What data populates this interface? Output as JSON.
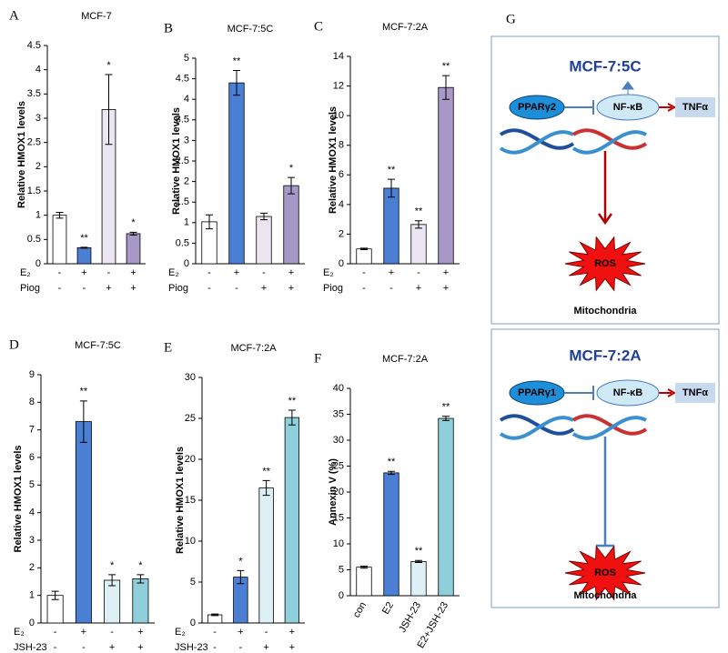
{
  "chart_data": [
    {
      "type": "bar",
      "label": "A",
      "title": "MCF-7",
      "y_label": "Relative HMOX1 levels",
      "values": [
        1.0,
        0.33,
        3.18,
        0.62
      ],
      "errors": [
        0.06,
        0.01,
        0.72,
        0.03
      ],
      "colors": [
        "#ffffff",
        "#4a7fd4",
        "#ece6f2",
        "#a898c8"
      ],
      "significance": [
        null,
        "**",
        "*",
        "*"
      ],
      "conditions": [
        {
          "name": "E₂",
          "values": [
            "-",
            "+",
            "-",
            "+"
          ]
        },
        {
          "name": "Piog",
          "values": [
            "-",
            "-",
            "+",
            "+"
          ]
        }
      ],
      "ylim": [
        0,
        4.5
      ],
      "yticks": [
        0,
        0.5,
        1,
        1.5,
        2,
        2.5,
        3,
        3.5,
        4,
        4.5
      ]
    },
    {
      "type": "bar",
      "label": "B",
      "title": "MCF-7:5C",
      "y_label": "Relative HMOX1 levels",
      "values": [
        1.02,
        4.4,
        1.15,
        1.9
      ],
      "errors": [
        0.17,
        0.3,
        0.08,
        0.2
      ],
      "colors": [
        "#ffffff",
        "#4a7fd4",
        "#ece6f2",
        "#a898c8"
      ],
      "significance": [
        null,
        "**",
        null,
        "*"
      ],
      "conditions": [
        {
          "name": "E₂",
          "values": [
            "-",
            "+",
            "-",
            "+"
          ]
        },
        {
          "name": "Piog",
          "values": [
            "-",
            "-",
            "+",
            "+"
          ]
        }
      ],
      "ylim": [
        0,
        5
      ],
      "yticks": [
        0,
        0.5,
        1,
        1.5,
        2,
        2.5,
        3,
        3.5,
        4,
        4.5,
        5
      ]
    },
    {
      "type": "bar",
      "label": "C",
      "title": "MCF-7:2A",
      "y_label": "Relative HMOX1 levels",
      "values": [
        1.0,
        5.1,
        2.65,
        11.9
      ],
      "errors": [
        0.05,
        0.6,
        0.25,
        0.8
      ],
      "colors": [
        "#ffffff",
        "#4a7fd4",
        "#ece6f2",
        "#a898c8"
      ],
      "significance": [
        null,
        "**",
        "**",
        "**"
      ],
      "conditions": [
        {
          "name": "E₂",
          "values": [
            "-",
            "+",
            "-",
            "+"
          ]
        },
        {
          "name": "Piog",
          "values": [
            "-",
            "-",
            "+",
            "+"
          ]
        }
      ],
      "ylim": [
        0,
        14
      ],
      "yticks": [
        0,
        2,
        4,
        6,
        8,
        10,
        12,
        14
      ]
    },
    {
      "type": "bar",
      "label": "D",
      "title": "MCF-7:5C",
      "y_label": "Relative HMOX1 levels",
      "values": [
        1.0,
        7.3,
        1.55,
        1.6
      ],
      "errors": [
        0.15,
        0.75,
        0.2,
        0.15
      ],
      "colors": [
        "#ffffff",
        "#4a7fd4",
        "#ddf0f5",
        "#8fcfdb"
      ],
      "significance": [
        null,
        "**",
        "*",
        "*"
      ],
      "conditions": [
        {
          "name": "E₂",
          "values": [
            "-",
            "+",
            "-",
            "+"
          ]
        },
        {
          "name": "JSH-23",
          "values": [
            "-",
            "-",
            "+",
            "+"
          ]
        }
      ],
      "ylim": [
        0,
        9
      ],
      "yticks": [
        0,
        1,
        2,
        3,
        4,
        5,
        6,
        7,
        8,
        9
      ]
    },
    {
      "type": "bar",
      "label": "E",
      "title": "MCF-7:2A",
      "y_label": "Relative HMOX1 levels",
      "values": [
        1.0,
        5.6,
        16.5,
        25.1
      ],
      "errors": [
        0.1,
        0.8,
        0.9,
        0.9
      ],
      "colors": [
        "#ffffff",
        "#4a7fd4",
        "#ddf0f5",
        "#8fcfdb"
      ],
      "significance": [
        null,
        "*",
        "**",
        "**"
      ],
      "conditions": [
        {
          "name": "E₂",
          "values": [
            "-",
            "+",
            "-",
            "+"
          ]
        },
        {
          "name": "JSH-23",
          "values": [
            "-",
            "-",
            "+",
            "+"
          ]
        }
      ],
      "ylim": [
        0,
        30
      ],
      "yticks": [
        0,
        5,
        10,
        15,
        20,
        25,
        30
      ]
    },
    {
      "type": "bar",
      "label": "F",
      "title": "MCF-7:2A",
      "y_label": "Annexin V (%)",
      "categories": [
        "con",
        "E2",
        "JSH-23",
        "E2+JSH-23"
      ],
      "values": [
        5.5,
        23.7,
        6.6,
        34.2
      ],
      "errors": [
        0.2,
        0.3,
        0.2,
        0.4
      ],
      "colors": [
        "#ffffff",
        "#4a7fd4",
        "#ddf0f5",
        "#8fcfdb"
      ],
      "significance": [
        null,
        "**",
        "**",
        "**"
      ],
      "ylim": [
        0,
        40
      ],
      "yticks": [
        0,
        5,
        10,
        15,
        20,
        25,
        30,
        35,
        40
      ]
    }
  ],
  "diagram": {
    "label": "G",
    "panels": [
      {
        "title": "MCF-7:5C",
        "receptor": "PPARγ2",
        "factor": "NF-κB",
        "output": "TNFα",
        "effect": "ROS",
        "organelle": "Mitochondria"
      },
      {
        "title": "MCF-7:2A",
        "receptor": "PPARγ1",
        "factor": "NF-κB",
        "output": "TNFα",
        "effect": "ROS",
        "organelle": "Mitochondria"
      }
    ]
  }
}
